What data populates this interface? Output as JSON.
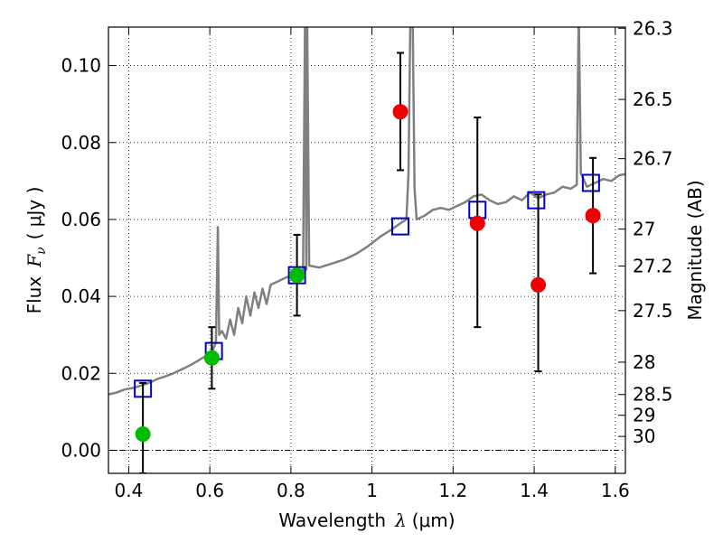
{
  "chart_data": {
    "type": "scatter",
    "xlabel_text": "Wavelength",
    "xlabel_symbol": "λ",
    "xlabel_unit": "(μm)",
    "ylabel_text": "Flux",
    "ylabel_symbol": "F",
    "ylabel_sub": "ν",
    "ylabel_unit": "( μJy )",
    "y2label": "Magnitude (AB)",
    "xlim": [
      0.35,
      1.625
    ],
    "ylim": [
      -0.006,
      0.11
    ],
    "grid": true,
    "x_ticks": [
      0.4,
      0.6,
      0.8,
      1.0,
      1.2,
      1.4,
      1.6
    ],
    "x_tick_labels": [
      "0.4",
      "0.6",
      "0.8",
      "1",
      "1.2",
      "1.4",
      "1.6"
    ],
    "y_ticks": [
      0.0,
      0.02,
      0.04,
      0.06,
      0.08,
      0.1
    ],
    "y_tick_labels": [
      "0.00",
      "0.02",
      "0.04",
      "0.06",
      "0.08",
      "0.10"
    ],
    "y2_ticks": [
      {
        "label": "26.3",
        "flux": 0.1097
      },
      {
        "label": "26.5",
        "flux": 0.0912
      },
      {
        "label": "26.7",
        "flux": 0.0758
      },
      {
        "label": "27",
        "flux": 0.0575
      },
      {
        "label": "27.2",
        "flux": 0.0479
      },
      {
        "label": "27.5",
        "flux": 0.0363
      },
      {
        "label": "28",
        "flux": 0.0229
      },
      {
        "label": "28.5",
        "flux": 0.0145
      },
      {
        "label": "29",
        "flux": 0.0091
      },
      {
        "label": "30",
        "flux": 0.0036
      }
    ],
    "reference_line_y": 0.0,
    "series": [
      {
        "kind": "line",
        "color": "#808080",
        "points": [
          [
            0.35,
            0.0145
          ],
          [
            0.37,
            0.015
          ],
          [
            0.39,
            0.0158
          ],
          [
            0.41,
            0.0162
          ],
          [
            0.43,
            0.0168
          ],
          [
            0.45,
            0.0175
          ],
          [
            0.47,
            0.0185
          ],
          [
            0.49,
            0.0192
          ],
          [
            0.51,
            0.02
          ],
          [
            0.53,
            0.021
          ],
          [
            0.55,
            0.022
          ],
          [
            0.57,
            0.0232
          ],
          [
            0.59,
            0.0245
          ],
          [
            0.605,
            0.0255
          ],
          [
            0.615,
            0.028
          ],
          [
            0.62,
            0.058
          ],
          [
            0.623,
            0.03
          ],
          [
            0.63,
            0.031
          ],
          [
            0.64,
            0.029
          ],
          [
            0.65,
            0.034
          ],
          [
            0.66,
            0.03
          ],
          [
            0.67,
            0.037
          ],
          [
            0.68,
            0.033
          ],
          [
            0.69,
            0.04
          ],
          [
            0.7,
            0.035
          ],
          [
            0.71,
            0.041
          ],
          [
            0.72,
            0.037
          ],
          [
            0.73,
            0.042
          ],
          [
            0.74,
            0.038
          ],
          [
            0.75,
            0.043
          ],
          [
            0.77,
            0.044
          ],
          [
            0.79,
            0.045
          ],
          [
            0.81,
            0.0455
          ],
          [
            0.83,
            0.046
          ],
          [
            0.835,
            0.115
          ],
          [
            0.838,
            0.047
          ],
          [
            0.84,
            0.115
          ],
          [
            0.845,
            0.048
          ],
          [
            0.87,
            0.0475
          ],
          [
            0.9,
            0.0485
          ],
          [
            0.93,
            0.0495
          ],
          [
            0.96,
            0.051
          ],
          [
            0.99,
            0.053
          ],
          [
            1.02,
            0.0555
          ],
          [
            1.05,
            0.0575
          ],
          [
            1.07,
            0.059
          ],
          [
            1.085,
            0.06
          ],
          [
            1.09,
            0.072
          ],
          [
            1.095,
            0.115
          ],
          [
            1.1,
            0.115
          ],
          [
            1.105,
            0.068
          ],
          [
            1.11,
            0.06
          ],
          [
            1.13,
            0.061
          ],
          [
            1.15,
            0.0625
          ],
          [
            1.17,
            0.063
          ],
          [
            1.19,
            0.0625
          ],
          [
            1.21,
            0.0635
          ],
          [
            1.23,
            0.0645
          ],
          [
            1.25,
            0.066
          ],
          [
            1.27,
            0.0665
          ],
          [
            1.29,
            0.065
          ],
          [
            1.31,
            0.064
          ],
          [
            1.33,
            0.0645
          ],
          [
            1.35,
            0.066
          ],
          [
            1.37,
            0.065
          ],
          [
            1.39,
            0.067
          ],
          [
            1.41,
            0.0655
          ],
          [
            1.43,
            0.0665
          ],
          [
            1.45,
            0.067
          ],
          [
            1.47,
            0.0685
          ],
          [
            1.49,
            0.068
          ],
          [
            1.505,
            0.069
          ],
          [
            1.51,
            0.115
          ],
          [
            1.515,
            0.072
          ],
          [
            1.53,
            0.0685
          ],
          [
            1.55,
            0.0695
          ],
          [
            1.57,
            0.0705
          ],
          [
            1.59,
            0.07
          ],
          [
            1.61,
            0.0715
          ],
          [
            1.625,
            0.0718
          ]
        ]
      },
      {
        "kind": "square",
        "color": "#0000cc",
        "points": [
          [
            0.435,
            0.016
          ],
          [
            0.61,
            0.0258
          ],
          [
            0.815,
            0.0455
          ],
          [
            1.07,
            0.0582
          ],
          [
            1.26,
            0.0625
          ],
          [
            1.405,
            0.065
          ],
          [
            1.54,
            0.0695
          ]
        ]
      },
      {
        "kind": "errorbar",
        "color": "#000000",
        "points": [
          [
            0.435,
            0.0175,
            -0.006
          ],
          [
            0.605,
            0.032,
            0.016
          ],
          [
            0.815,
            0.056,
            0.035
          ],
          [
            1.07,
            0.1033,
            0.0728
          ],
          [
            1.26,
            0.0865,
            0.032
          ],
          [
            1.41,
            0.0665,
            0.0205
          ],
          [
            1.545,
            0.076,
            0.046
          ]
        ]
      },
      {
        "kind": "circle",
        "color": "#00bb00",
        "points": [
          [
            0.435,
            0.0042
          ],
          [
            0.605,
            0.024
          ],
          [
            0.815,
            0.0455
          ]
        ]
      },
      {
        "kind": "circle",
        "color": "#ee0000",
        "points": [
          [
            1.07,
            0.088
          ],
          [
            1.26,
            0.059
          ],
          [
            1.41,
            0.043
          ],
          [
            1.545,
            0.061
          ]
        ]
      }
    ]
  }
}
